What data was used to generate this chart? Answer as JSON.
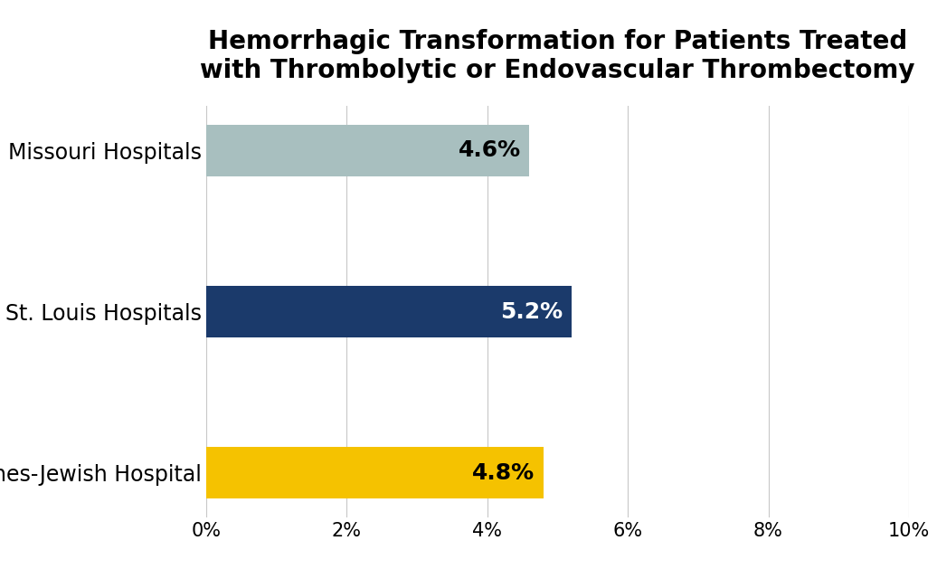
{
  "title": "Hemorrhagic Transformation for Patients Treated\nwith Thrombolytic or Endovascular Thrombectomy",
  "categories": [
    "Barnes-Jewish Hospital",
    "St. Louis Hospitals",
    "Missouri Hospitals"
  ],
  "values": [
    4.8,
    5.2,
    4.6
  ],
  "bar_colors": [
    "#F5C200",
    "#1B3A6B",
    "#A8BFBF"
  ],
  "bar_labels": [
    "4.8%",
    "5.2%",
    "4.6%"
  ],
  "xlim": [
    0,
    10
  ],
  "xticks": [
    0,
    2,
    4,
    6,
    8,
    10
  ],
  "xtick_labels": [
    "0%",
    "2%",
    "4%",
    "6%",
    "8%",
    "10%"
  ],
  "title_fontsize": 20,
  "ylabel_fontsize": 17,
  "tick_fontsize": 15,
  "bar_label_fontsize": 18,
  "bar_height": 0.32,
  "background_color": "#FFFFFF",
  "grid_color": "#C8C8C8",
  "label_color_missouri": "black",
  "label_color_stlouis": "white",
  "label_color_barnes": "black"
}
